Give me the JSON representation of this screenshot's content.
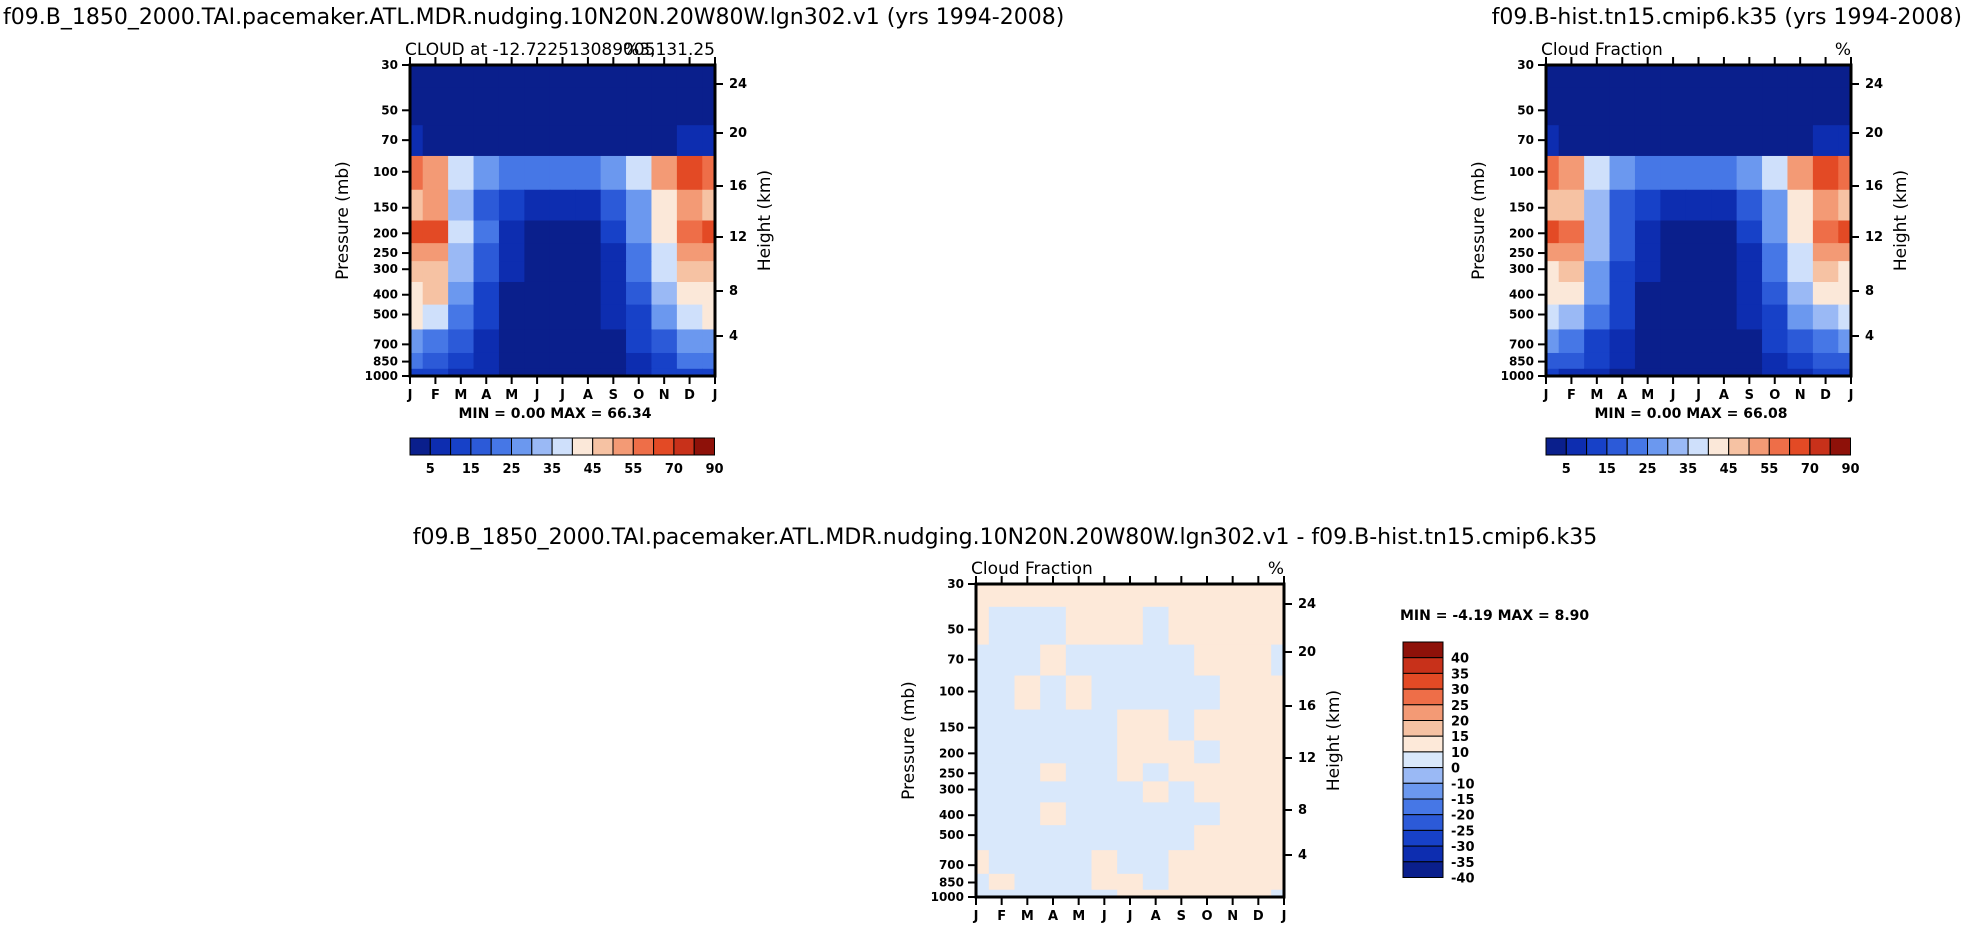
{
  "colors": {
    "main_scale": [
      "#0a1f8c",
      "#0d2db0",
      "#1741c8",
      "#2c5ad8",
      "#4677e6",
      "#6b98ef",
      "#9ab9f5",
      "#cfe0fb",
      "#fbe8d9",
      "#f6c2a3",
      "#f39a75",
      "#ee6e48",
      "#e34a25",
      "#c8311a",
      "#8e1109"
    ],
    "diff_scale": [
      "#0a1f8c",
      "#0d2db0",
      "#1741c8",
      "#2c5ad8",
      "#4677e6",
      "#6b98ef",
      "#9ab9f5",
      "#d9e8fb",
      "#fde9d9",
      "#f6c2a3",
      "#f39a75",
      "#ee6e48",
      "#e34a25",
      "#c8311a",
      "#8e1109"
    ]
  },
  "chart_data": [
    {
      "type": "heatmap",
      "title": "f09.B_1850_2000.TAI.pacemaker.ATL.MDR.nudging.10N20N.20W80W.lgn302.v1 (yrs 1994-2008)",
      "subtitle_left": "CLOUD at -12.722513089005",
      "subtitle_right": "%3,131.25",
      "ylabel": "Pressure (mb)",
      "y2label": "Height (km)",
      "x_ticks": [
        "J",
        "F",
        "M",
        "A",
        "M",
        "J",
        "J",
        "A",
        "S",
        "O",
        "N",
        "D",
        "J"
      ],
      "y_ticks": [
        "30",
        "50",
        "70",
        "100",
        "150",
        "200",
        "250",
        "300",
        "400",
        "500",
        "700",
        "850",
        "1000"
      ],
      "y2_ticks": [
        "24",
        "20",
        "16",
        "12",
        "8",
        "4"
      ],
      "stats": "MIN =    0.00  MAX =   66.34",
      "min": 0.0,
      "max": 66.34,
      "levels": [
        "5",
        "15",
        "25",
        "35",
        "45",
        "55",
        "70",
        "90"
      ],
      "pressure_levels": [
        30,
        50,
        70,
        100,
        150,
        200,
        250,
        300,
        400,
        500,
        700,
        850,
        1000
      ],
      "months": [
        1,
        2,
        3,
        4,
        5,
        6,
        7,
        8,
        9,
        10,
        11,
        12,
        13
      ],
      "values": [
        [
          0,
          0,
          0,
          0,
          0,
          0,
          0,
          0,
          0,
          0,
          0,
          0,
          0
        ],
        [
          1,
          1,
          1,
          1,
          1,
          1,
          1,
          1,
          1,
          1,
          1,
          1,
          1
        ],
        [
          5,
          4,
          3,
          3,
          2,
          2,
          2,
          2,
          2,
          3,
          4,
          6,
          6
        ],
        [
          58,
          52,
          35,
          25,
          22,
          20,
          20,
          21,
          25,
          35,
          50,
          60,
          58
        ],
        [
          45,
          50,
          32,
          18,
          12,
          8,
          8,
          9,
          15,
          28,
          40,
          50,
          45
        ],
        [
          60,
          60,
          35,
          20,
          8,
          2,
          2,
          3,
          10,
          25,
          40,
          55,
          60
        ],
        [
          50,
          52,
          32,
          18,
          6,
          1,
          1,
          2,
          8,
          22,
          38,
          50,
          50
        ],
        [
          45,
          48,
          30,
          15,
          5,
          1,
          1,
          2,
          7,
          20,
          35,
          45,
          45
        ],
        [
          42,
          45,
          28,
          14,
          4,
          1,
          1,
          1,
          6,
          18,
          30,
          40,
          42
        ],
        [
          40,
          35,
          22,
          12,
          4,
          1,
          1,
          1,
          5,
          14,
          25,
          35,
          40
        ],
        [
          28,
          24,
          16,
          9,
          3,
          1,
          1,
          1,
          4,
          10,
          18,
          25,
          28
        ],
        [
          20,
          18,
          12,
          7,
          2,
          1,
          1,
          1,
          3,
          8,
          14,
          20,
          20
        ],
        [
          12,
          10,
          8,
          5,
          2,
          1,
          1,
          1,
          2,
          6,
          10,
          12,
          12
        ]
      ]
    },
    {
      "type": "heatmap",
      "title": "f09.B-hist.tn15.cmip6.k35 (yrs 1994-2008)",
      "subtitle_left": "Cloud Fraction",
      "subtitle_right": "%",
      "ylabel": "Pressure (mb)",
      "y2label": "Height (km)",
      "x_ticks": [
        "J",
        "F",
        "M",
        "A",
        "M",
        "J",
        "J",
        "A",
        "S",
        "O",
        "N",
        "D",
        "J"
      ],
      "y_ticks": [
        "30",
        "50",
        "70",
        "100",
        "150",
        "200",
        "250",
        "300",
        "400",
        "500",
        "700",
        "850",
        "1000"
      ],
      "y2_ticks": [
        "24",
        "20",
        "16",
        "12",
        "8",
        "4"
      ],
      "stats": "MIN =    0.00  MAX =   66.08",
      "min": 0.0,
      "max": 66.08,
      "levels": [
        "5",
        "15",
        "25",
        "35",
        "45",
        "55",
        "70",
        "90"
      ],
      "pressure_levels": [
        30,
        50,
        70,
        100,
        150,
        200,
        250,
        300,
        400,
        500,
        700,
        850,
        1000
      ],
      "months": [
        1,
        2,
        3,
        4,
        5,
        6,
        7,
        8,
        9,
        10,
        11,
        12,
        13
      ],
      "values": [
        [
          0,
          0,
          0,
          0,
          0,
          0,
          0,
          0,
          0,
          0,
          0,
          0,
          0
        ],
        [
          1,
          1,
          1,
          1,
          1,
          1,
          1,
          1,
          1,
          1,
          1,
          1,
          1
        ],
        [
          5,
          4,
          3,
          3,
          2,
          2,
          2,
          2,
          2,
          3,
          4,
          6,
          6
        ],
        [
          58,
          52,
          35,
          25,
          22,
          20,
          20,
          21,
          25,
          35,
          50,
          60,
          58
        ],
        [
          45,
          48,
          30,
          18,
          12,
          8,
          8,
          9,
          15,
          28,
          40,
          50,
          45
        ],
        [
          60,
          58,
          33,
          18,
          8,
          2,
          2,
          3,
          10,
          25,
          40,
          55,
          60
        ],
        [
          50,
          50,
          30,
          16,
          6,
          1,
          1,
          2,
          8,
          22,
          38,
          50,
          50
        ],
        [
          44,
          46,
          28,
          14,
          5,
          1,
          1,
          2,
          7,
          20,
          35,
          45,
          44
        ],
        [
          40,
          42,
          26,
          12,
          4,
          1,
          1,
          1,
          6,
          18,
          30,
          40,
          40
        ],
        [
          36,
          32,
          20,
          10,
          4,
          1,
          1,
          1,
          5,
          14,
          25,
          34,
          36
        ],
        [
          26,
          22,
          14,
          8,
          3,
          1,
          1,
          1,
          4,
          10,
          18,
          24,
          26
        ],
        [
          18,
          16,
          10,
          6,
          2,
          1,
          1,
          1,
          3,
          8,
          14,
          18,
          18
        ],
        [
          10,
          9,
          7,
          4,
          2,
          1,
          1,
          1,
          2,
          6,
          9,
          11,
          10
        ]
      ]
    },
    {
      "type": "heatmap",
      "title": "f09.B_1850_2000.TAI.pacemaker.ATL.MDR.nudging.10N20N.20W80W.lgn302.v1  -  f09.B-hist.tn15.cmip6.k35",
      "subtitle_left": "Cloud Fraction",
      "subtitle_right": "%",
      "ylabel": "Pressure (mb)",
      "y2label": "Height (km)",
      "x_ticks": [
        "J",
        "F",
        "M",
        "A",
        "M",
        "J",
        "J",
        "A",
        "S",
        "O",
        "N",
        "D",
        "J"
      ],
      "y_ticks": [
        "30",
        "50",
        "70",
        "100",
        "150",
        "200",
        "250",
        "300",
        "400",
        "500",
        "700",
        "850",
        "1000"
      ],
      "y2_ticks": [
        "24",
        "20",
        "16",
        "12",
        "8",
        "4"
      ],
      "stats": "MIN =   -4.19  MAX =    8.90",
      "min": -4.19,
      "max": 8.9,
      "levels": [
        "40",
        "35",
        "30",
        "25",
        "20",
        "15",
        "10",
        "0",
        "-10",
        "-15",
        "-20",
        "-25",
        "-30",
        "-35",
        "-40"
      ],
      "pressure_levels": [
        30,
        50,
        70,
        100,
        150,
        200,
        250,
        300,
        400,
        500,
        700,
        850,
        1000
      ],
      "months": [
        1,
        2,
        3,
        4,
        5,
        6,
        7,
        8,
        9,
        10,
        11,
        12,
        13
      ],
      "values": [
        [
          0.5,
          0.5,
          0.5,
          0.5,
          0.5,
          0.5,
          0.5,
          0.5,
          0.5,
          0.5,
          0.5,
          0.5,
          0.5
        ],
        [
          0.5,
          -0.5,
          -0.5,
          -0.5,
          0.5,
          0.5,
          0.5,
          -0.5,
          0.5,
          0.5,
          0.5,
          0.5,
          0.5
        ],
        [
          -0.5,
          -0.5,
          -0.5,
          0.5,
          -0.5,
          -0.5,
          -0.5,
          -0.5,
          -0.5,
          0.5,
          0.5,
          0.5,
          -0.5
        ],
        [
          -0.5,
          -0.5,
          0.5,
          -0.5,
          0.5,
          -0.5,
          -0.5,
          -0.5,
          -0.5,
          -0.5,
          0.5,
          0.5,
          0.5
        ],
        [
          -0.5,
          -0.5,
          -0.5,
          -0.5,
          -0.5,
          -0.5,
          0.5,
          0.5,
          -0.5,
          0.5,
          0.5,
          0.5,
          0.5
        ],
        [
          -0.5,
          -0.5,
          -0.5,
          -0.5,
          -0.5,
          -0.5,
          0.5,
          0.5,
          0.5,
          -0.5,
          0.5,
          0.5,
          0.5
        ],
        [
          -0.5,
          -0.5,
          -0.5,
          0.5,
          -0.5,
          -0.5,
          0.5,
          -0.5,
          0.5,
          0.5,
          0.5,
          0.5,
          0.5
        ],
        [
          -0.5,
          -0.5,
          -0.5,
          -0.5,
          -0.5,
          -0.5,
          -0.5,
          0.5,
          -0.5,
          0.5,
          0.5,
          0.5,
          0.5
        ],
        [
          -0.5,
          -0.5,
          -0.5,
          0.5,
          -0.5,
          -0.5,
          -0.5,
          -0.5,
          -0.5,
          -0.5,
          0.5,
          0.5,
          0.5
        ],
        [
          -0.5,
          -0.5,
          -0.5,
          -0.5,
          -0.5,
          -0.5,
          -0.5,
          -0.5,
          -0.5,
          0.5,
          0.5,
          0.5,
          0.5
        ],
        [
          0.5,
          -0.5,
          -0.5,
          -0.5,
          -0.5,
          0.5,
          -0.5,
          -0.5,
          0.5,
          0.5,
          0.5,
          0.5,
          0.5
        ],
        [
          -0.5,
          0.5,
          -0.5,
          -0.5,
          -0.5,
          0.5,
          0.5,
          -0.5,
          0.5,
          0.5,
          0.5,
          0.5,
          0.5
        ],
        [
          -0.5,
          -0.5,
          -0.5,
          -0.5,
          -0.5,
          -0.5,
          0.5,
          0.5,
          0.5,
          0.5,
          0.5,
          0.5,
          -0.5
        ]
      ]
    }
  ]
}
